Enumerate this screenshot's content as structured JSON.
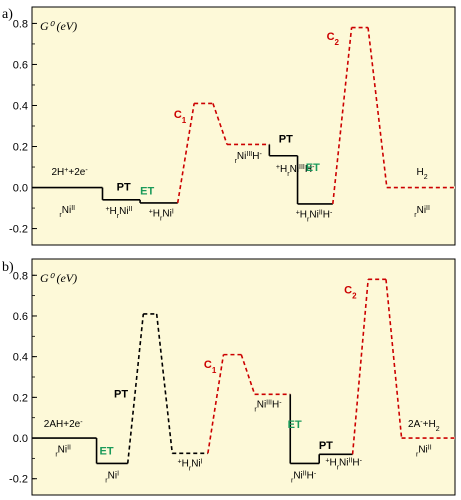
{
  "chart_data": [
    {
      "type": "line",
      "panel_label": "a)",
      "ylabel": "G⁰ (eV)",
      "ylim": [
        -0.28,
        0.88
      ],
      "yticks": [
        "0.8",
        "0.6",
        "0.4",
        "0.2",
        "0.0",
        "-0.2"
      ],
      "ytick_values": [
        0.8,
        0.6,
        0.4,
        0.2,
        0.0,
        -0.2
      ],
      "levels": [
        {
          "from": 0.0,
          "to": 3.0,
          "y": 0.0
        },
        {
          "from": 3.0,
          "to": 4.6,
          "y": -0.06
        },
        {
          "from": 4.6,
          "to": 6.2,
          "y": -0.075
        },
        {
          "from": 6.9,
          "to": 7.7,
          "y": 0.41
        },
        {
          "from": 8.3,
          "to": 10.1,
          "y": 0.21
        },
        {
          "from": 10.1,
          "to": 11.3,
          "y": 0.155
        },
        {
          "from": 11.3,
          "to": 12.8,
          "y": -0.08
        },
        {
          "from": 13.6,
          "to": 14.3,
          "y": 0.78
        },
        {
          "from": 15.1,
          "to": 18.0,
          "y": 0.0
        }
      ],
      "connectors": [
        {
          "x": 3.0,
          "y0": 0.0,
          "y1": -0.06,
          "style": "solid",
          "color": "#000000"
        },
        {
          "x": 4.6,
          "y0": -0.06,
          "y1": -0.075,
          "style": "dashed",
          "color": "#000000"
        },
        {
          "x0": 6.2,
          "x1": 6.9,
          "y0": -0.075,
          "y1": 0.41,
          "style": "dashed",
          "color": "#cc0000"
        },
        {
          "x0": 7.7,
          "x1": 8.3,
          "y0": 0.41,
          "y1": 0.21,
          "style": "dashed",
          "color": "#cc0000"
        },
        {
          "x": 10.1,
          "y0": 0.21,
          "y1": 0.155,
          "style": "solid",
          "color": "#000000"
        },
        {
          "x": 11.3,
          "y0": 0.155,
          "y1": -0.08,
          "style": "solid",
          "color": "#000000"
        },
        {
          "x0": 12.8,
          "x1": 13.6,
          "y0": -0.08,
          "y1": 0.78,
          "style": "dashed",
          "color": "#cc0000"
        },
        {
          "x0": 14.3,
          "x1": 15.1,
          "y0": 0.78,
          "y1": 0.0,
          "style": "dashed",
          "color": "#cc0000"
        }
      ],
      "labels": [
        {
          "x": 1.6,
          "y": 0.06,
          "parts": [
            [
              "2H",
              ""
            ],
            [
              "+",
              "sup"
            ],
            [
              "+2e",
              ""
            ],
            [
              "-",
              "sup"
            ]
          ]
        },
        {
          "x": 1.5,
          "y": -0.125,
          "parts": [
            [
              "r",
              "sub"
            ],
            [
              "Ni",
              ""
            ],
            [
              "II",
              "sup"
            ]
          ]
        },
        {
          "x": 3.7,
          "y": -0.13,
          "parts": [
            [
              "+",
              "sup"
            ],
            [
              "H",
              ""
            ],
            [
              "r",
              "sub"
            ],
            [
              "Ni",
              ""
            ],
            [
              "II",
              "sup"
            ]
          ]
        },
        {
          "x": 5.5,
          "y": -0.14,
          "parts": [
            [
              "+",
              "sup"
            ],
            [
              "H",
              ""
            ],
            [
              "r",
              "sub"
            ],
            [
              "Ni",
              ""
            ],
            [
              "I",
              "sup"
            ]
          ]
        },
        {
          "x": 9.2,
          "y": 0.14,
          "parts": [
            [
              "r",
              "sub"
            ],
            [
              "Ni",
              ""
            ],
            [
              "III",
              "sup"
            ],
            [
              "H",
              ""
            ],
            [
              "-",
              "sup"
            ]
          ]
        },
        {
          "x": 11.2,
          "y": 0.075,
          "parts": [
            [
              "+",
              "sup"
            ],
            [
              "H",
              ""
            ],
            [
              "r",
              "sub"
            ],
            [
              "Ni",
              ""
            ],
            [
              "III",
              "sup"
            ],
            [
              "H",
              ""
            ],
            [
              "-",
              "sup"
            ]
          ]
        },
        {
          "x": 12.0,
          "y": -0.145,
          "parts": [
            [
              "+",
              "sup"
            ],
            [
              "H",
              ""
            ],
            [
              "r",
              "sub"
            ],
            [
              "Ni",
              ""
            ],
            [
              "II",
              "sup"
            ],
            [
              "H",
              ""
            ],
            [
              "-",
              "sup"
            ]
          ]
        },
        {
          "x": 16.6,
          "y": 0.06,
          "parts": [
            [
              "H",
              ""
            ],
            [
              "2",
              "sub"
            ]
          ]
        },
        {
          "x": 16.6,
          "y": -0.125,
          "parts": [
            [
              "r",
              "sub"
            ],
            [
              "Ni",
              ""
            ],
            [
              "II",
              "sup"
            ]
          ]
        }
      ],
      "tags": [
        {
          "x": 3.9,
          "y": -0.015,
          "text": "PT",
          "color": "#000000"
        },
        {
          "x": 4.9,
          "y": -0.035,
          "text": "ET",
          "color": "#1a9a5a"
        },
        {
          "x": 6.3,
          "y": 0.34,
          "text": "C",
          "sub": "1",
          "color": "#cc0000"
        },
        {
          "x": 10.8,
          "y": 0.22,
          "text": "PT",
          "color": "#000000"
        },
        {
          "x": 11.95,
          "y": 0.08,
          "text": "ET",
          "color": "#1a9a5a"
        },
        {
          "x": 12.8,
          "y": 0.72,
          "text": "C",
          "sub": "2",
          "color": "#cc0000"
        }
      ]
    },
    {
      "type": "line",
      "panel_label": "b)",
      "ylabel": "G⁰ (eV)",
      "ylim": [
        -0.28,
        0.88
      ],
      "yticks": [
        "0.8",
        "0.6",
        "0.4",
        "0.2",
        "0.0",
        "-0.2"
      ],
      "ytick_values": [
        0.8,
        0.6,
        0.4,
        0.2,
        0.0,
        -0.2
      ],
      "levels": [
        {
          "from": 0.0,
          "to": 2.9,
          "y": 0.0
        },
        {
          "from": 2.9,
          "to": 4.3,
          "y": -0.125
        },
        {
          "from": 5.0,
          "to": 5.6,
          "y": 0.61
        },
        {
          "from": 6.3,
          "to": 7.9,
          "y": -0.075
        },
        {
          "from": 8.6,
          "to": 9.4,
          "y": 0.41
        },
        {
          "from": 10.0,
          "to": 11.6,
          "y": 0.215
        },
        {
          "from": 11.6,
          "to": 12.9,
          "y": -0.125
        },
        {
          "from": 12.9,
          "to": 14.4,
          "y": -0.08
        },
        {
          "from": 15.1,
          "to": 15.9,
          "y": 0.78
        },
        {
          "from": 16.6,
          "to": 19.0,
          "y": 0.0
        }
      ],
      "connectors": [
        {
          "x": 2.9,
          "y0": 0.0,
          "y1": -0.125,
          "style": "solid",
          "color": "#000000"
        },
        {
          "x0": 4.3,
          "x1": 5.0,
          "y0": -0.125,
          "y1": 0.61,
          "style": "dashed",
          "color": "#000000"
        },
        {
          "x0": 5.6,
          "x1": 6.3,
          "y0": 0.61,
          "y1": -0.075,
          "style": "dashed",
          "color": "#000000"
        },
        {
          "x0": 7.9,
          "x1": 8.6,
          "y0": -0.075,
          "y1": 0.41,
          "style": "dashed",
          "color": "#cc0000"
        },
        {
          "x0": 9.4,
          "x1": 10.0,
          "y0": 0.41,
          "y1": 0.215,
          "style": "dashed",
          "color": "#cc0000"
        },
        {
          "x": 11.6,
          "y0": 0.215,
          "y1": -0.125,
          "style": "solid",
          "color": "#000000"
        },
        {
          "x": 12.9,
          "y0": -0.125,
          "y1": -0.08,
          "style": "solid",
          "color": "#000000"
        },
        {
          "x0": 14.4,
          "x1": 15.1,
          "y0": -0.08,
          "y1": 0.78,
          "style": "dashed",
          "color": "#cc0000"
        },
        {
          "x0": 15.9,
          "x1": 16.6,
          "y0": 0.78,
          "y1": 0.0,
          "style": "dashed",
          "color": "#cc0000"
        }
      ],
      "labels": [
        {
          "x": 1.4,
          "y": 0.055,
          "parts": [
            [
              "2AH+2e",
              ""
            ],
            [
              "-",
              "sup"
            ]
          ]
        },
        {
          "x": 1.4,
          "y": -0.07,
          "parts": [
            [
              "r",
              "sub"
            ],
            [
              "Ni",
              ""
            ],
            [
              "II",
              "sup"
            ]
          ]
        },
        {
          "x": 3.6,
          "y": -0.2,
          "parts": [
            [
              "r",
              "sub"
            ],
            [
              "Ni",
              ""
            ],
            [
              "I",
              "sup"
            ]
          ]
        },
        {
          "x": 7.1,
          "y": -0.14,
          "parts": [
            [
              "+",
              "sup"
            ],
            [
              "H",
              ""
            ],
            [
              "r",
              "sub"
            ],
            [
              "Ni",
              ""
            ],
            [
              "I",
              "sup"
            ]
          ]
        },
        {
          "x": 10.6,
          "y": 0.15,
          "parts": [
            [
              "r",
              "sub"
            ],
            [
              "Ni",
              ""
            ],
            [
              "III",
              "sup"
            ],
            [
              "H",
              ""
            ],
            [
              "-",
              "sup"
            ]
          ]
        },
        {
          "x": 12.2,
          "y": -0.2,
          "parts": [
            [
              "r",
              "sub"
            ],
            [
              "Ni",
              ""
            ],
            [
              "II",
              "sup"
            ],
            [
              "H",
              ""
            ],
            [
              "-",
              "sup"
            ]
          ]
        },
        {
          "x": 14.0,
          "y": -0.135,
          "parts": [
            [
              "+",
              "sup"
            ],
            [
              "H",
              ""
            ],
            [
              "r",
              "sub"
            ],
            [
              "Ni",
              ""
            ],
            [
              "II",
              "sup"
            ],
            [
              "H",
              ""
            ],
            [
              "-",
              "sup"
            ]
          ]
        },
        {
          "x": 17.6,
          "y": 0.055,
          "parts": [
            [
              "2A",
              ""
            ],
            [
              "-",
              "sup"
            ],
            [
              "+H",
              ""
            ],
            [
              "2",
              "sub"
            ]
          ]
        },
        {
          "x": 17.6,
          "y": -0.07,
          "parts": [
            [
              "r",
              "sub"
            ],
            [
              "Ni",
              ""
            ],
            [
              "II",
              "sup"
            ]
          ]
        }
      ],
      "tags": [
        {
          "x": 3.35,
          "y": -0.08,
          "text": "ET",
          "color": "#1a9a5a"
        },
        {
          "x": 4.0,
          "y": 0.2,
          "text": "PT",
          "color": "#000000"
        },
        {
          "x": 8.0,
          "y": 0.345,
          "text": "C",
          "sub": "1",
          "color": "#cc0000"
        },
        {
          "x": 11.8,
          "y": 0.05,
          "text": "ET",
          "color": "#1a9a5a"
        },
        {
          "x": 13.2,
          "y": -0.055,
          "text": "PT",
          "color": "#000000",
          "weight": "normal"
        },
        {
          "x": 14.3,
          "y": 0.71,
          "text": "C",
          "sub": "2",
          "color": "#cc0000"
        }
      ]
    }
  ],
  "colors": {
    "plot_background": "#fdf9d8",
    "pathway_black": "#000000",
    "pathway_red": "#cc0000",
    "et_green": "#1a9a5a"
  }
}
